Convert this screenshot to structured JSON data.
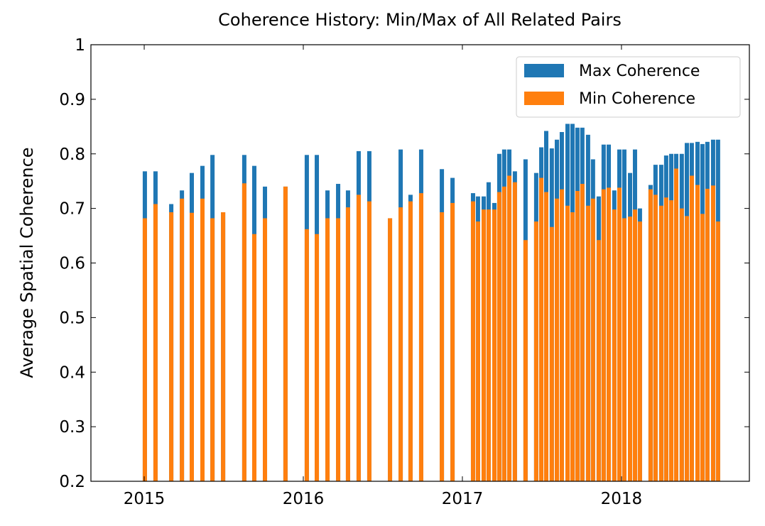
{
  "chart_data": {
    "type": "bar",
    "title": "Coherence History: Min/Max of All Related Pairs",
    "y_label": "Average Spatial Coherence",
    "x": [
      2015.004,
      2015.071,
      2015.17,
      2015.237,
      2015.299,
      2015.366,
      2015.429,
      2015.496,
      2015.629,
      2015.692,
      2015.759,
      2015.888,
      2016.022,
      2016.085,
      2016.152,
      2016.219,
      2016.281,
      2016.348,
      2016.415,
      2016.545,
      2016.612,
      2016.674,
      2016.741,
      2016.871,
      2016.938,
      2017.067,
      2017.098,
      2017.134,
      2017.165,
      2017.201,
      2017.232,
      2017.263,
      2017.295,
      2017.33,
      2017.397,
      2017.464,
      2017.496,
      2017.527,
      2017.562,
      2017.594,
      2017.625,
      2017.661,
      2017.692,
      2017.723,
      2017.754,
      2017.79,
      2017.821,
      2017.857,
      2017.888,
      2017.92,
      2017.955,
      2017.987,
      2018.018,
      2018.054,
      2018.085,
      2018.116,
      2018.183,
      2018.214,
      2018.25,
      2018.281,
      2018.313,
      2018.344,
      2018.379,
      2018.411,
      2018.442,
      2018.478,
      2018.509,
      2018.54,
      2018.576,
      2018.607
    ],
    "series": [
      {
        "name": "Max Coherence",
        "color": "#1f77b4",
        "values": [
          0.768,
          0.768,
          0.708,
          0.733,
          0.765,
          0.778,
          0.798,
          0.693,
          0.798,
          0.778,
          0.74,
          0.74,
          0.798,
          0.798,
          0.733,
          0.745,
          0.733,
          0.805,
          0.805,
          0.682,
          0.808,
          0.725,
          0.808,
          0.772,
          0.756,
          0.728,
          0.722,
          0.722,
          0.748,
          0.71,
          0.8,
          0.808,
          0.808,
          0.768,
          0.79,
          0.765,
          0.812,
          0.842,
          0.81,
          0.826,
          0.84,
          0.855,
          0.855,
          0.848,
          0.848,
          0.835,
          0.79,
          0.722,
          0.817,
          0.817,
          0.733,
          0.808,
          0.808,
          0.765,
          0.808,
          0.7,
          0.743,
          0.78,
          0.78,
          0.797,
          0.8,
          0.8,
          0.8,
          0.82,
          0.82,
          0.822,
          0.818,
          0.822,
          0.826,
          0.826
        ]
      },
      {
        "name": "Min Coherence",
        "color": "#ff7f0e",
        "values": [
          0.682,
          0.708,
          0.693,
          0.718,
          0.692,
          0.718,
          0.682,
          0.693,
          0.746,
          0.653,
          0.682,
          0.74,
          0.662,
          0.653,
          0.682,
          0.682,
          0.702,
          0.725,
          0.713,
          0.682,
          0.702,
          0.713,
          0.728,
          0.693,
          0.71,
          0.713,
          0.676,
          0.698,
          0.698,
          0.698,
          0.73,
          0.74,
          0.76,
          0.748,
          0.642,
          0.676,
          0.756,
          0.73,
          0.666,
          0.718,
          0.735,
          0.705,
          0.693,
          0.732,
          0.745,
          0.705,
          0.718,
          0.642,
          0.735,
          0.738,
          0.698,
          0.738,
          0.682,
          0.685,
          0.698,
          0.676,
          0.735,
          0.725,
          0.705,
          0.72,
          0.715,
          0.773,
          0.7,
          0.686,
          0.76,
          0.743,
          0.69,
          0.736,
          0.742,
          0.676
        ]
      }
    ],
    "xlim": [
      2014.665,
      2018.804
    ],
    "xticks": [
      2015,
      2016,
      2017,
      2018
    ],
    "ylim": [
      0.2,
      1.0
    ],
    "yticks": [
      0.2,
      0.3,
      0.4,
      0.5,
      0.6,
      0.7,
      0.8,
      0.9,
      1.0
    ],
    "legend": "upper right",
    "grid": false
  }
}
